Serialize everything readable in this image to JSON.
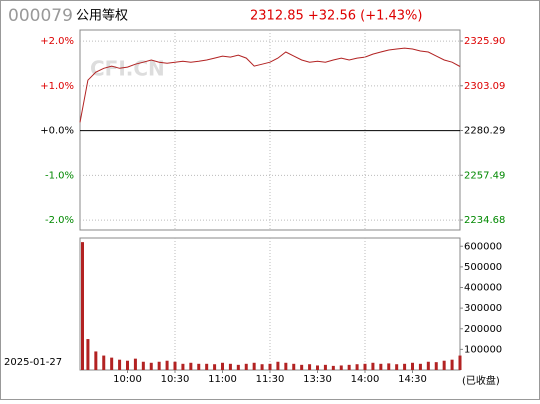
{
  "header": {
    "code": "000079",
    "name": "公用等权",
    "quote": "2312.85 +32.56 (+1.43%)"
  },
  "date": "2025-01-27",
  "status": "(已收盘)",
  "watermark": "CFI.CN",
  "chart_data": [
    {
      "type": "line",
      "x": [
        "09:30",
        "09:35",
        "09:40",
        "09:45",
        "09:50",
        "09:55",
        "10:00",
        "10:05",
        "10:10",
        "10:15",
        "10:20",
        "10:25",
        "10:30",
        "10:35",
        "10:40",
        "10:45",
        "10:50",
        "10:55",
        "11:00",
        "11:05",
        "11:10",
        "11:15",
        "11:20",
        "11:25",
        "11:30",
        "13:05",
        "13:10",
        "13:15",
        "13:20",
        "13:25",
        "13:30",
        "13:35",
        "13:40",
        "13:45",
        "13:50",
        "13:55",
        "14:00",
        "14:05",
        "14:10",
        "14:15",
        "14:20",
        "14:25",
        "14:30",
        "14:35",
        "14:40",
        "14:45",
        "14:50",
        "14:55",
        "15:00"
      ],
      "series": [
        {
          "color": "#b22222",
          "values": [
            2284.4,
            2305.9,
            2310,
            2312,
            2313.1,
            2312,
            2312.6,
            2314.1,
            2315.1,
            2316.2,
            2315.1,
            2314.6,
            2315.1,
            2315.6,
            2315.1,
            2315.6,
            2316.2,
            2317.2,
            2318.2,
            2317.7,
            2318.7,
            2317.2,
            2313.1,
            2314.1,
            2315.1,
            2317.2,
            2320.3,
            2318.2,
            2316.2,
            2315.1,
            2315.6,
            2315.1,
            2316.2,
            2317.2,
            2316.2,
            2317.2,
            2317.7,
            2319.2,
            2320.3,
            2321.3,
            2321.8,
            2322.3,
            2321.8,
            2320.8,
            2320.3,
            2318.2,
            2316.2,
            2315.1,
            2312.9
          ]
        }
      ],
      "ylim": [
        2229.6,
        2331.5
      ],
      "yticks": [
        {
          "value": 2325.9,
          "label": "2325.90"
        },
        2303.09,
        2280.29,
        2257.49,
        2234.68
      ],
      "y2lim": [
        -2.22,
        2.25
      ],
      "y2ticks": [
        {
          "value": 2,
          "label": "+2.0%"
        },
        {
          "value": 1,
          "label": "+1.0%"
        },
        {
          "value": 0,
          "label": "+0.0%"
        },
        {
          "value": -1,
          "label": "-1.0%"
        },
        {
          "value": -2,
          "label": "-2.0%"
        }
      ]
    },
    {
      "type": "bar",
      "color": "#b22222",
      "values": [
        620000,
        150000,
        90000,
        70000,
        60000,
        50000,
        45000,
        55000,
        40000,
        35000,
        40000,
        45000,
        40000,
        30000,
        35000,
        30000,
        30000,
        28000,
        35000,
        30000,
        25000,
        30000,
        35000,
        28000,
        30000,
        40000,
        35000,
        30000,
        25000,
        28000,
        22000,
        25000,
        20000,
        22000,
        25000,
        28000,
        30000,
        35000,
        30000,
        32000,
        28000,
        30000,
        35000,
        30000,
        40000,
        38000,
        45000,
        50000,
        70000
      ],
      "ylim": [
        0,
        640000
      ],
      "yticks": [
        600000,
        500000,
        400000,
        300000,
        200000,
        100000
      ],
      "xticks": [
        "10:00",
        "10:30",
        "11:00",
        "11:30",
        "13:30",
        "14:00",
        "14:30"
      ]
    }
  ]
}
